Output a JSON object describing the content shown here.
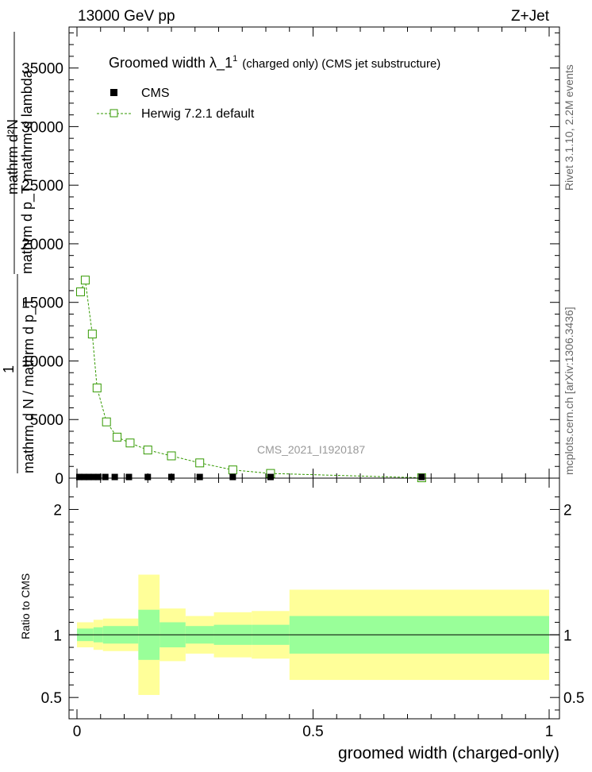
{
  "header": {
    "left_label": "13000 GeV pp",
    "right_label": "Z+Jet"
  },
  "side_labels": {
    "rivet": "Rivet 3.1.10,  2.2M events",
    "mcplots": "mcplots.cern.ch [arXiv:1306.3436]"
  },
  "chart_data": [
    {
      "type": "scatter",
      "title": "Groomed width  λ_1",
      "title_superscript": "1",
      "title_suffix": "(charged only) (CMS jet substructure)",
      "watermark": "CMS_2021_I1920187",
      "ylabel_numerator": "mathrm d²N",
      "ylabel_denominator_top": "mathrm d p_T mathrm d lambda",
      "ylabel_full_line1": "1",
      "ylabel_full_line2": "mathrm d N / mathrm d p_T",
      "xlabel": "groomed width (charged-only)",
      "xlim": [
        0,
        1
      ],
      "ylim": [
        0,
        38500
      ],
      "y_ticks": [
        0,
        5000,
        10000,
        15000,
        20000,
        25000,
        30000,
        35000
      ],
      "y_tick_labels": [
        "0",
        "5000",
        "10000",
        "15000",
        "20000",
        "25000",
        "30000",
        "35000"
      ],
      "legend": {
        "placement": "top-left",
        "entries": [
          "CMS",
          "Herwig 7.2.1 default"
        ]
      },
      "series": [
        {
          "name": "CMS",
          "marker": "filled-square",
          "color": "#000000",
          "x": [
            0.005,
            0.015,
            0.025,
            0.035,
            0.045,
            0.06,
            0.08,
            0.11,
            0.15,
            0.2,
            0.26,
            0.33,
            0.41,
            0.73
          ],
          "y": [
            30,
            30,
            30,
            30,
            30,
            30,
            30,
            30,
            30,
            30,
            30,
            30,
            30,
            30
          ]
        },
        {
          "name": "Herwig 7.2.1 default",
          "marker": "open-square",
          "color": "#339900",
          "line": "dashed",
          "x": [
            0.0075,
            0.0175,
            0.0325,
            0.0425,
            0.0625,
            0.085,
            0.1125,
            0.15,
            0.2,
            0.26,
            0.33,
            0.41,
            0.73
          ],
          "y": [
            15900,
            16900,
            12300,
            7700,
            4800,
            3500,
            3000,
            2400,
            1900,
            1300,
            700,
            400,
            30
          ]
        }
      ]
    },
    {
      "type": "area",
      "ylabel": "Ratio to CMS",
      "xlabel": "groomed width (charged-only)",
      "xlim": [
        0,
        1
      ],
      "ylim": [
        0.33,
        2.25
      ],
      "x_ticks": [
        0,
        0.5,
        1
      ],
      "x_tick_labels": [
        "0",
        "0.5",
        "1"
      ],
      "y_ticks": [
        0.5,
        1,
        2
      ],
      "y_tick_labels": [
        "0.5",
        "1",
        "2"
      ],
      "colors": {
        "stat": "#99ff99",
        "total": "#ffff99"
      },
      "bins": [
        {
          "x0": 0.0,
          "x1": 0.035,
          "stat": [
            0.95,
            1.05
          ],
          "total": [
            0.9,
            1.1
          ]
        },
        {
          "x0": 0.035,
          "x1": 0.055,
          "stat": [
            0.94,
            1.06
          ],
          "total": [
            0.88,
            1.12
          ]
        },
        {
          "x0": 0.055,
          "x1": 0.13,
          "stat": [
            0.93,
            1.07
          ],
          "total": [
            0.87,
            1.13
          ]
        },
        {
          "x0": 0.13,
          "x1": 0.175,
          "stat": [
            0.8,
            1.2
          ],
          "total": [
            0.52,
            1.48
          ]
        },
        {
          "x0": 0.175,
          "x1": 0.23,
          "stat": [
            0.9,
            1.1
          ],
          "total": [
            0.79,
            1.21
          ]
        },
        {
          "x0": 0.23,
          "x1": 0.29,
          "stat": [
            0.93,
            1.07
          ],
          "total": [
            0.85,
            1.15
          ]
        },
        {
          "x0": 0.29,
          "x1": 0.37,
          "stat": [
            0.92,
            1.08
          ],
          "total": [
            0.82,
            1.18
          ]
        },
        {
          "x0": 0.37,
          "x1": 0.45,
          "stat": [
            0.92,
            1.08
          ],
          "total": [
            0.81,
            1.19
          ]
        },
        {
          "x0": 0.45,
          "x1": 1.0,
          "stat": [
            0.85,
            1.15
          ],
          "total": [
            0.64,
            1.36
          ]
        }
      ]
    }
  ]
}
